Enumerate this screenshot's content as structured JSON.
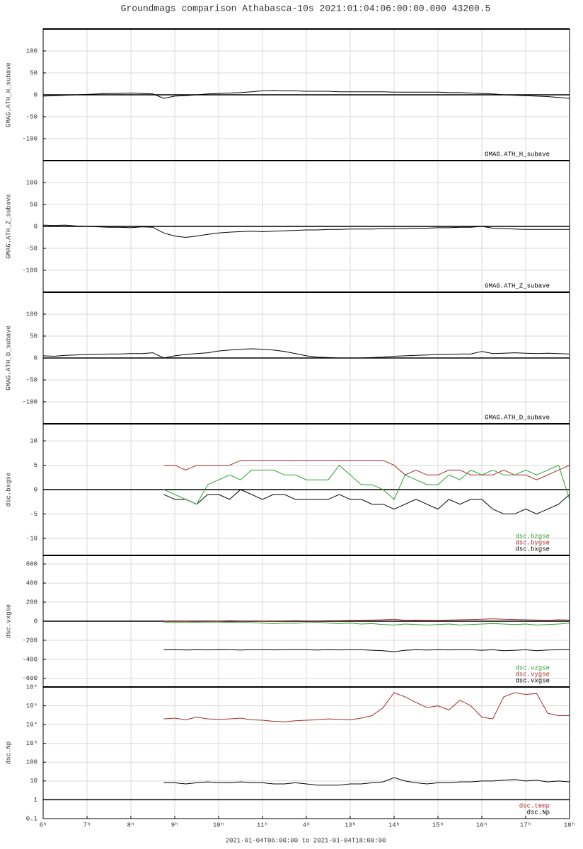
{
  "title": "Groundmags comparison Athabasca-10s 2021:01:04:06:00:00.000 43200.5",
  "xlabel": "2021-01-04T06:00:00 to 2021-01-04T18:00:00",
  "xlim": [
    6,
    18
  ],
  "xticks": [
    {
      "value": 6,
      "label": "6ʰ"
    },
    {
      "value": 7,
      "label": "7ʰ"
    },
    {
      "value": 8,
      "label": "8ʰ"
    },
    {
      "value": 9,
      "label": "9ʰ"
    },
    {
      "value": 10,
      "label": "10ʰ"
    },
    {
      "value": 11,
      "label": "11ʰ"
    },
    {
      "value": 12,
      "label": "4ᵈ"
    },
    {
      "value": 13,
      "label": "13ʰ"
    },
    {
      "value": 14,
      "label": "14ʰ"
    },
    {
      "value": 15,
      "label": "15ʰ"
    },
    {
      "value": 16,
      "label": "16ʰ"
    },
    {
      "value": 17,
      "label": "17ʰ"
    },
    {
      "value": 18,
      "label": "18ʰ"
    }
  ],
  "chart_data": [
    {
      "type": "line",
      "ylabel": "GMAG.ATH_H_subave",
      "ylim": [
        -150,
        150
      ],
      "yticks": [
        -100,
        -50,
        0,
        50,
        100
      ],
      "hline": 0,
      "grid": true,
      "x": [
        6,
        6.25,
        6.5,
        6.75,
        7,
        7.25,
        7.5,
        7.75,
        8,
        8.25,
        8.5,
        8.75,
        9,
        9.25,
        9.5,
        9.75,
        10,
        10.25,
        10.5,
        10.75,
        11,
        11.25,
        11.5,
        11.75,
        12,
        12.25,
        12.5,
        12.75,
        13,
        13.25,
        13.5,
        13.75,
        14,
        14.25,
        14.5,
        14.75,
        15,
        15.25,
        15.5,
        15.75,
        16,
        16.25,
        16.5,
        16.75,
        17,
        17.25,
        17.5,
        17.75,
        18
      ],
      "series": [
        {
          "name": "GMAG.ATH_H_subave",
          "color": "#000000",
          "values": [
            -3,
            -2,
            -1,
            0,
            1,
            2,
            3,
            3,
            4,
            3,
            2,
            -8,
            -3,
            -2,
            0,
            2,
            3,
            4,
            5,
            7,
            9,
            10,
            9,
            9,
            8,
            8,
            8,
            7,
            7,
            7,
            7,
            7,
            6,
            6,
            6,
            6,
            6,
            5,
            5,
            4,
            3,
            2,
            0,
            -1,
            -2,
            -3,
            -4,
            -6,
            -8
          ]
        }
      ]
    },
    {
      "type": "line",
      "ylabel": "GMAG.ATH_Z_subave",
      "ylim": [
        -150,
        150
      ],
      "yticks": [
        -100,
        -50,
        0,
        50,
        100
      ],
      "hline": 0,
      "grid": true,
      "x": [
        6,
        6.25,
        6.5,
        6.75,
        7,
        7.25,
        7.5,
        7.75,
        8,
        8.25,
        8.5,
        8.75,
        9,
        9.25,
        9.5,
        9.75,
        10,
        10.25,
        10.5,
        10.75,
        11,
        11.25,
        11.5,
        11.75,
        12,
        12.25,
        12.5,
        12.75,
        13,
        13.25,
        13.5,
        13.75,
        14,
        14.25,
        14.5,
        14.75,
        15,
        15.25,
        15.5,
        15.75,
        16,
        16.25,
        16.5,
        16.75,
        17,
        17.25,
        17.5,
        17.75,
        18
      ],
      "series": [
        {
          "name": "GMAG.ATH_Z_subave",
          "color": "#000000",
          "values": [
            3,
            2,
            3,
            1,
            0,
            -1,
            -2,
            -2,
            -3,
            -1,
            -2,
            -15,
            -22,
            -25,
            -22,
            -18,
            -15,
            -13,
            -12,
            -11,
            -12,
            -11,
            -10,
            -9,
            -8,
            -8,
            -7,
            -7,
            -6,
            -6,
            -6,
            -5,
            -5,
            -5,
            -4,
            -4,
            -3,
            -3,
            -2,
            -2,
            0,
            -4,
            -5,
            -6,
            -7,
            -7,
            -7,
            -7,
            -7
          ]
        }
      ]
    },
    {
      "type": "line",
      "ylabel": "GMAG.ATH_D_subave",
      "ylim": [
        -150,
        150
      ],
      "yticks": [
        -100,
        -50,
        0,
        50,
        100
      ],
      "hline": 0,
      "grid": true,
      "x": [
        6,
        6.25,
        6.5,
        6.75,
        7,
        7.25,
        7.5,
        7.75,
        8,
        8.25,
        8.5,
        8.75,
        9,
        9.25,
        9.5,
        9.75,
        10,
        10.25,
        10.5,
        10.75,
        11,
        11.25,
        11.5,
        11.75,
        12,
        12.25,
        12.5,
        12.75,
        13,
        13.25,
        13.5,
        13.75,
        14,
        14.25,
        14.5,
        14.75,
        15,
        15.25,
        15.5,
        15.75,
        16,
        16.25,
        16.5,
        16.75,
        17,
        17.25,
        17.5,
        17.75,
        18
      ],
      "series": [
        {
          "name": "GMAG.ATH_D_subave",
          "color": "#000000",
          "values": [
            5,
            4,
            6,
            7,
            8,
            8,
            9,
            9,
            10,
            10,
            12,
            0,
            5,
            8,
            10,
            12,
            16,
            18,
            20,
            21,
            20,
            18,
            15,
            10,
            5,
            2,
            1,
            0,
            0,
            0,
            1,
            2,
            4,
            5,
            6,
            7,
            8,
            8,
            9,
            9,
            15,
            10,
            11,
            12,
            11,
            10,
            11,
            10,
            9
          ]
        }
      ]
    },
    {
      "type": "line",
      "ylabel": "dsc.bxgse",
      "ylim": [
        -13.5,
        13.5
      ],
      "yticks": [
        -10,
        -5,
        0,
        5,
        10
      ],
      "hline": 0,
      "grid": true,
      "x": [
        8.75,
        9,
        9.25,
        9.5,
        9.75,
        10,
        10.25,
        10.5,
        10.75,
        11,
        11.25,
        11.5,
        11.75,
        12,
        12.25,
        12.5,
        12.75,
        13,
        13.25,
        13.5,
        13.75,
        14,
        14.25,
        14.5,
        14.75,
        15,
        15.25,
        15.5,
        15.75,
        16,
        16.25,
        16.5,
        16.75,
        17,
        17.25,
        17.5,
        17.75,
        18
      ],
      "series": [
        {
          "name": "dsc.bxgse",
          "color": "#000000",
          "values": [
            -1,
            -2,
            -2,
            -3,
            -1,
            -1,
            -2,
            0,
            -1,
            -2,
            -1,
            -1,
            -2,
            -2,
            -2,
            -2,
            -1,
            -2,
            -2,
            -3,
            -3,
            -4,
            -3,
            -2,
            -3,
            -4,
            -2,
            -3,
            -2,
            -2,
            -4,
            -5,
            -5,
            -4,
            -5,
            -4,
            -3,
            -1
          ]
        },
        {
          "name": "dsc.bygse",
          "color": "#a52a2a",
          "values": [
            5,
            5,
            4,
            5,
            5,
            5,
            5,
            6,
            6,
            6,
            6,
            6,
            6,
            6,
            6,
            6,
            6,
            6,
            6,
            6,
            6,
            5,
            3,
            4,
            3,
            3,
            4,
            4,
            3,
            3,
            3,
            4,
            3,
            3,
            2,
            3,
            4,
            5
          ]
        },
        {
          "name": "dsc.bzgse",
          "color": "#2ca02c",
          "values": [
            0,
            -1,
            -2,
            -3,
            1,
            2,
            3,
            2,
            4,
            4,
            4,
            3,
            3,
            2,
            2,
            2,
            5,
            3,
            1,
            1,
            0,
            -2,
            3,
            2,
            1,
            1,
            3,
            2,
            4,
            3,
            4,
            3,
            3,
            4,
            3,
            4,
            5,
            -2
          ]
        }
      ]
    },
    {
      "type": "line",
      "ylabel": "dsc.vxgse",
      "ylim": [
        -690,
        690
      ],
      "yticks": [
        -600,
        -400,
        -200,
        0,
        200,
        400,
        600
      ],
      "hline": 0,
      "grid": true,
      "x": [
        8.75,
        9,
        9.25,
        9.5,
        9.75,
        10,
        10.25,
        10.5,
        10.75,
        11,
        11.25,
        11.5,
        11.75,
        12,
        12.25,
        12.5,
        12.75,
        13,
        13.25,
        13.5,
        13.75,
        14,
        14.25,
        14.5,
        14.75,
        15,
        15.25,
        15.5,
        15.75,
        16,
        16.25,
        16.5,
        16.75,
        17,
        17.25,
        17.5,
        17.75,
        18
      ],
      "series": [
        {
          "name": "dsc.vxgse",
          "color": "#000000",
          "values": [
            -300,
            -298,
            -302,
            -300,
            -301,
            -299,
            -300,
            -302,
            -300,
            -300,
            -301,
            -300,
            -299,
            -300,
            -302,
            -300,
            -301,
            -300,
            -300,
            -305,
            -310,
            -320,
            -305,
            -300,
            -302,
            -300,
            -301,
            -300,
            -300,
            -305,
            -300,
            -310,
            -305,
            -300,
            -310,
            -302,
            -300,
            -298
          ]
        },
        {
          "name": "dsc.vygse",
          "color": "#a52a2a",
          "values": [
            0,
            -2,
            0,
            3,
            2,
            0,
            5,
            2,
            3,
            0,
            2,
            3,
            5,
            4,
            3,
            5,
            6,
            8,
            10,
            12,
            15,
            20,
            10,
            12,
            10,
            8,
            12,
            15,
            18,
            20,
            25,
            20,
            18,
            15,
            12,
            10,
            15,
            12
          ]
        },
        {
          "name": "dsc.vzgse",
          "color": "#2ca02c",
          "values": [
            -10,
            -15,
            -10,
            -12,
            -8,
            -10,
            -12,
            -10,
            -15,
            -20,
            -25,
            -20,
            -22,
            -15,
            -10,
            -20,
            -25,
            -20,
            -30,
            -25,
            -35,
            -40,
            -30,
            -35,
            -40,
            -35,
            -30,
            -40,
            -35,
            -30,
            -25,
            -30,
            -35,
            -30,
            -40,
            -35,
            -30,
            -20
          ]
        }
      ]
    },
    {
      "type": "line",
      "ylabel": "dsc.Np",
      "ylim": [
        0.1,
        1000000
      ],
      "log": true,
      "hline": 1,
      "grid": true,
      "yticks": [
        0.1,
        1,
        10,
        100,
        {
          "value": 1000,
          "label": "10³"
        },
        {
          "value": 10000,
          "label": "10⁴"
        },
        {
          "value": 100000,
          "label": "10⁵"
        },
        {
          "value": 1000000,
          "label": "10⁶"
        }
      ],
      "x": [
        8.75,
        9,
        9.25,
        9.5,
        9.75,
        10,
        10.25,
        10.5,
        10.75,
        11,
        11.25,
        11.5,
        11.75,
        12,
        12.25,
        12.5,
        12.75,
        13,
        13.25,
        13.5,
        13.75,
        14,
        14.25,
        14.5,
        14.75,
        15,
        15.25,
        15.5,
        15.75,
        16,
        16.25,
        16.5,
        16.75,
        17,
        17.25,
        17.5,
        17.75,
        18
      ],
      "series": [
        {
          "name": "dsc.Np",
          "color": "#000000",
          "values": [
            8,
            8,
            7,
            8,
            9,
            8,
            8,
            9,
            8,
            8,
            7,
            7,
            8,
            7,
            6,
            6,
            6,
            7,
            7,
            8,
            9,
            15,
            10,
            8,
            7,
            8,
            8,
            9,
            9,
            10,
            10,
            11,
            12,
            10,
            11,
            9,
            10,
            9
          ]
        },
        {
          "name": "dsc.temp",
          "color": "#a52a2a",
          "values": [
            20000,
            22000,
            18000,
            25000,
            20000,
            19000,
            20000,
            22000,
            18000,
            17000,
            15000,
            14000,
            16000,
            17000,
            18000,
            20000,
            19000,
            18000,
            22000,
            30000,
            80000,
            500000,
            300000,
            150000,
            80000,
            100000,
            60000,
            200000,
            100000,
            25000,
            20000,
            300000,
            500000,
            400000,
            450000,
            40000,
            30000,
            30000
          ]
        }
      ]
    }
  ]
}
